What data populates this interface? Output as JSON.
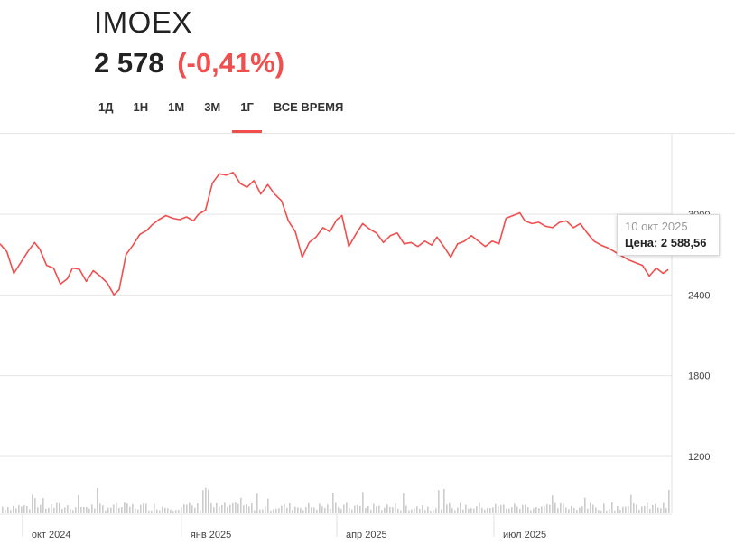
{
  "header": {
    "ticker": "IMOEX",
    "price": "2 578",
    "change": "(-0,41%)"
  },
  "colors": {
    "accent": "#f24e4e",
    "line": "#f24e4e",
    "volume": "#cccccc",
    "grid": "#e6e6e6"
  },
  "tabs": [
    {
      "label": "1Д",
      "active": false
    },
    {
      "label": "1Н",
      "active": false
    },
    {
      "label": "1М",
      "active": false
    },
    {
      "label": "3М",
      "active": false
    },
    {
      "label": "1Г",
      "active": true
    },
    {
      "label": "ВСЕ ВРЕМЯ",
      "active": false
    }
  ],
  "tooltip": {
    "date": "10 окт 2025",
    "price": "Цена: 2 588,56"
  },
  "chart_data": {
    "type": "line",
    "title": "",
    "xlabel": "",
    "ylabel": "",
    "grid": true,
    "y_ticks": [
      1200,
      1800,
      2400,
      3000
    ],
    "y_tick_labels": [
      "1200",
      "1800",
      "2400",
      "3000"
    ],
    "ylim": [
      1000,
      3600
    ],
    "x_ticks": [
      {
        "date": "2024-10-01",
        "label": "окт 2024"
      },
      {
        "date": "2025-01-01",
        "label": "янв 2025"
      },
      {
        "date": "2025-04-01",
        "label": "апр 2025"
      },
      {
        "date": "2025-07-01",
        "label": "июл 2025"
      }
    ],
    "xlim": [
      "2024-09-18",
      "2025-10-12"
    ],
    "series": [
      {
        "points": [
          [
            "2024-09-18",
            2780
          ],
          [
            "2024-09-22",
            2720
          ],
          [
            "2024-09-26",
            2560
          ],
          [
            "2024-09-30",
            2640
          ],
          [
            "2024-10-04",
            2720
          ],
          [
            "2024-10-08",
            2790
          ],
          [
            "2024-10-11",
            2740
          ],
          [
            "2024-10-15",
            2620
          ],
          [
            "2024-10-19",
            2600
          ],
          [
            "2024-10-23",
            2480
          ],
          [
            "2024-10-27",
            2520
          ],
          [
            "2024-10-30",
            2600
          ],
          [
            "2024-11-03",
            2590
          ],
          [
            "2024-11-07",
            2500
          ],
          [
            "2024-11-11",
            2580
          ],
          [
            "2024-11-15",
            2540
          ],
          [
            "2024-11-19",
            2490
          ],
          [
            "2024-11-23",
            2400
          ],
          [
            "2024-11-26",
            2440
          ],
          [
            "2024-11-30",
            2700
          ],
          [
            "2024-12-04",
            2770
          ],
          [
            "2024-12-08",
            2850
          ],
          [
            "2024-12-12",
            2880
          ],
          [
            "2024-12-15",
            2920
          ],
          [
            "2024-12-19",
            2960
          ],
          [
            "2024-12-23",
            2990
          ],
          [
            "2024-12-27",
            2970
          ],
          [
            "2024-12-31",
            2960
          ],
          [
            "2025-01-04",
            2980
          ],
          [
            "2025-01-08",
            2950
          ],
          [
            "2025-01-11",
            3000
          ],
          [
            "2025-01-15",
            3030
          ],
          [
            "2025-01-19",
            3230
          ],
          [
            "2025-01-23",
            3300
          ],
          [
            "2025-01-27",
            3290
          ],
          [
            "2025-01-31",
            3310
          ],
          [
            "2025-02-04",
            3230
          ],
          [
            "2025-02-08",
            3200
          ],
          [
            "2025-02-12",
            3250
          ],
          [
            "2025-02-16",
            3150
          ],
          [
            "2025-02-20",
            3220
          ],
          [
            "2025-02-24",
            3150
          ],
          [
            "2025-02-28",
            3100
          ],
          [
            "2025-03-04",
            2950
          ],
          [
            "2025-03-08",
            2870
          ],
          [
            "2025-03-12",
            2680
          ],
          [
            "2025-03-16",
            2790
          ],
          [
            "2025-03-20",
            2830
          ],
          [
            "2025-03-24",
            2900
          ],
          [
            "2025-03-28",
            2870
          ],
          [
            "2025-04-01",
            2960
          ],
          [
            "2025-04-04",
            2990
          ],
          [
            "2025-04-08",
            2760
          ],
          [
            "2025-04-12",
            2850
          ],
          [
            "2025-04-16",
            2930
          ],
          [
            "2025-04-20",
            2890
          ],
          [
            "2025-04-24",
            2860
          ],
          [
            "2025-04-28",
            2790
          ],
          [
            "2025-05-02",
            2840
          ],
          [
            "2025-05-06",
            2860
          ],
          [
            "2025-05-10",
            2780
          ],
          [
            "2025-05-14",
            2790
          ],
          [
            "2025-05-18",
            2760
          ],
          [
            "2025-05-22",
            2800
          ],
          [
            "2025-05-26",
            2770
          ],
          [
            "2025-05-29",
            2830
          ],
          [
            "2025-06-02",
            2760
          ],
          [
            "2025-06-06",
            2680
          ],
          [
            "2025-06-10",
            2780
          ],
          [
            "2025-06-14",
            2800
          ],
          [
            "2025-06-18",
            2840
          ],
          [
            "2025-06-22",
            2800
          ],
          [
            "2025-06-26",
            2760
          ],
          [
            "2025-06-30",
            2800
          ],
          [
            "2025-07-04",
            2780
          ],
          [
            "2025-07-08",
            2970
          ],
          [
            "2025-07-12",
            2990
          ],
          [
            "2025-07-16",
            3010
          ],
          [
            "2025-07-19",
            2950
          ],
          [
            "2025-07-23",
            2930
          ],
          [
            "2025-07-27",
            2940
          ],
          [
            "2025-07-31",
            2910
          ],
          [
            "2025-08-04",
            2900
          ],
          [
            "2025-08-08",
            2940
          ],
          [
            "2025-08-12",
            2950
          ],
          [
            "2025-08-16",
            2900
          ],
          [
            "2025-08-20",
            2930
          ],
          [
            "2025-08-24",
            2860
          ],
          [
            "2025-08-28",
            2800
          ],
          [
            "2025-09-01",
            2770
          ],
          [
            "2025-09-05",
            2750
          ],
          [
            "2025-09-09",
            2720
          ],
          [
            "2025-09-13",
            2690
          ],
          [
            "2025-09-17",
            2660
          ],
          [
            "2025-09-21",
            2640
          ],
          [
            "2025-09-25",
            2620
          ],
          [
            "2025-09-29",
            2540
          ],
          [
            "2025-10-03",
            2600
          ],
          [
            "2025-10-07",
            2560
          ],
          [
            "2025-10-10",
            2589
          ]
        ]
      }
    ]
  }
}
